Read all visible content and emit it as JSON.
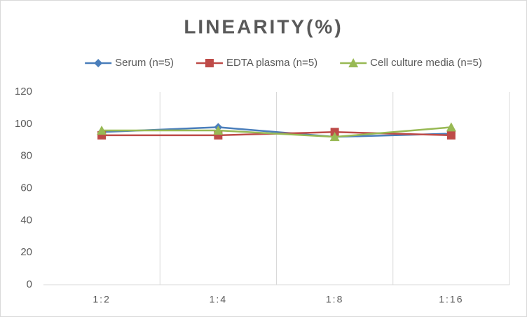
{
  "chart_data": {
    "type": "line",
    "title": "LINEARITY(%)",
    "categories": [
      "1:2",
      "1:4",
      "1:8",
      "1:16"
    ],
    "series": [
      {
        "name": "Serum (n=5)",
        "color": "#4a7ebb",
        "marker": "diamond",
        "values": [
          95,
          98,
          92,
          94
        ]
      },
      {
        "name": "EDTA plasma (n=5)",
        "color": "#be4b48",
        "marker": "square",
        "values": [
          93,
          93,
          95,
          93
        ]
      },
      {
        "name": "Cell culture media (n=5)",
        "color": "#98b954",
        "marker": "triangle",
        "values": [
          96,
          96,
          92,
          98
        ]
      }
    ],
    "ylim": [
      0,
      120
    ],
    "yticks": [
      0,
      20,
      40,
      60,
      80,
      100,
      120
    ],
    "grid": "vertical",
    "legend": "top"
  }
}
